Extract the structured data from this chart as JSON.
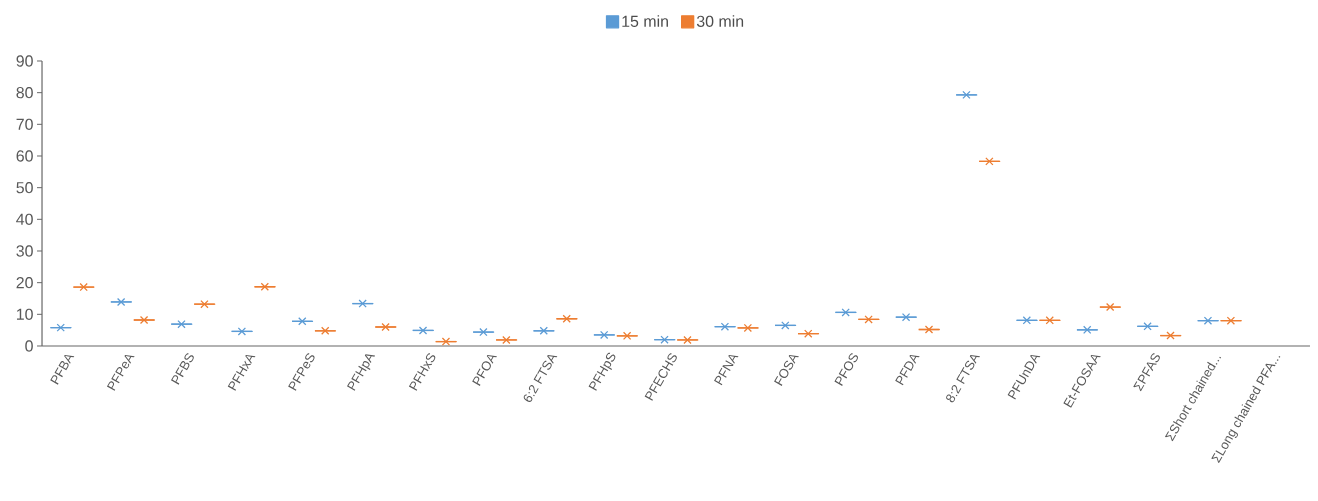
{
  "chart_data": {
    "type": "box",
    "categories": [
      "PFBA",
      "PFPeA",
      "PFBS",
      "PFHxA",
      "PFPeS",
      "PFHpA",
      "PFHxS",
      "PFOA",
      "6:2 FTSA",
      "PFHpS",
      "PFECHS",
      "PFNA",
      "FOSA",
      "PFOS",
      "PFDA",
      "8:2 FTSA",
      "PFUnDA",
      "Et-FOSAA",
      "ΣPFAS",
      "ΣShort chained...",
      "ΣLong chained PFA..."
    ],
    "series": [
      {
        "name": "15 min",
        "color": "#5b9bd5",
        "boxes": [
          {
            "low": 5.8,
            "q1": 5.8,
            "median": 5.8,
            "q3": 5.8,
            "high": 5.8,
            "mean": 5.8
          },
          {
            "low": 13.9,
            "q1": 13.9,
            "median": 13.9,
            "q3": 13.9,
            "high": 13.9,
            "mean": 13.9
          },
          {
            "low": 6.9,
            "q1": 6.9,
            "median": 6.9,
            "q3": 6.9,
            "high": 6.9,
            "mean": 6.9
          },
          {
            "low": 4.6,
            "q1": 4.6,
            "median": 4.6,
            "q3": 4.6,
            "high": 4.6,
            "mean": 4.6
          },
          {
            "low": 7.8,
            "q1": 7.8,
            "median": 7.8,
            "q3": 7.8,
            "high": 7.8,
            "mean": 7.8
          },
          {
            "low": 13.4,
            "q1": 13.4,
            "median": 13.4,
            "q3": 13.4,
            "high": 13.4,
            "mean": 13.4
          },
          {
            "low": 4.9,
            "q1": 4.9,
            "median": 4.9,
            "q3": 4.9,
            "high": 4.9,
            "mean": 4.9
          },
          {
            "low": 4.4,
            "q1": 4.4,
            "median": 4.4,
            "q3": 4.4,
            "high": 4.4,
            "mean": 4.4
          },
          {
            "low": 4.8,
            "q1": 4.8,
            "median": 4.8,
            "q3": 4.8,
            "high": 4.8,
            "mean": 4.8
          },
          {
            "low": 3.5,
            "q1": 3.5,
            "median": 3.5,
            "q3": 3.5,
            "high": 3.5,
            "mean": 3.5
          },
          {
            "low": 2.0,
            "q1": 2.0,
            "median": 2.0,
            "q3": 2.0,
            "high": 2.0,
            "mean": 2.0
          },
          {
            "low": 6.1,
            "q1": 6.1,
            "median": 6.1,
            "q3": 6.1,
            "high": 6.1,
            "mean": 6.1
          },
          {
            "low": 6.5,
            "q1": 6.5,
            "median": 6.5,
            "q3": 6.5,
            "high": 6.5,
            "mean": 6.5
          },
          {
            "low": 10.6,
            "q1": 10.6,
            "median": 10.6,
            "q3": 10.6,
            "high": 10.6,
            "mean": 10.6
          },
          {
            "low": 9.1,
            "q1": 9.1,
            "median": 9.1,
            "q3": 9.1,
            "high": 9.1,
            "mean": 9.1
          },
          {
            "low": 79.3,
            "q1": 79.3,
            "median": 79.3,
            "q3": 79.3,
            "high": 79.3,
            "mean": 79.3
          },
          {
            "low": 8.1,
            "q1": 8.1,
            "median": 8.1,
            "q3": 8.1,
            "high": 8.1,
            "mean": 8.1
          },
          {
            "low": 5.1,
            "q1": 5.1,
            "median": 5.1,
            "q3": 5.1,
            "high": 5.1,
            "mean": 5.1
          },
          {
            "low": 6.2,
            "q1": 6.2,
            "median": 6.2,
            "q3": 6.2,
            "high": 6.2,
            "mean": 6.2
          },
          {
            "low": 8.0,
            "q1": 8.0,
            "median": 8.0,
            "q3": 8.0,
            "high": 8.0,
            "mean": 8.0
          },
          null
        ]
      },
      {
        "name": "30 min",
        "color": "#ed7d31",
        "boxes": [
          {
            "low": 18.6,
            "q1": 18.6,
            "median": 18.6,
            "q3": 18.6,
            "high": 18.6,
            "mean": 18.6
          },
          {
            "low": 8.2,
            "q1": 8.2,
            "median": 8.2,
            "q3": 8.2,
            "high": 8.2,
            "mean": 8.2
          },
          {
            "low": 13.2,
            "q1": 13.2,
            "median": 13.2,
            "q3": 13.2,
            "high": 13.2,
            "mean": 13.2
          },
          {
            "low": 18.7,
            "q1": 18.7,
            "median": 18.7,
            "q3": 18.7,
            "high": 18.7,
            "mean": 18.7
          },
          {
            "low": 4.8,
            "q1": 4.8,
            "median": 4.8,
            "q3": 4.8,
            "high": 4.8,
            "mean": 4.8
          },
          {
            "low": 6.0,
            "q1": 6.0,
            "median": 6.0,
            "q3": 6.0,
            "high": 6.0,
            "mean": 6.0
          },
          {
            "low": 1.4,
            "q1": 1.4,
            "median": 1.4,
            "q3": 1.4,
            "high": 1.4,
            "mean": 1.4
          },
          {
            "low": 1.9,
            "q1": 1.9,
            "median": 1.9,
            "q3": 1.9,
            "high": 1.9,
            "mean": 1.9
          },
          {
            "low": 8.6,
            "q1": 8.6,
            "median": 8.6,
            "q3": 8.6,
            "high": 8.6,
            "mean": 8.6
          },
          {
            "low": 3.2,
            "q1": 3.2,
            "median": 3.2,
            "q3": 3.2,
            "high": 3.2,
            "mean": 3.2
          },
          {
            "low": 1.9,
            "q1": 1.9,
            "median": 1.9,
            "q3": 1.9,
            "high": 1.9,
            "mean": 1.9
          },
          {
            "low": 5.7,
            "q1": 5.7,
            "median": 5.7,
            "q3": 5.7,
            "high": 5.7,
            "mean": 5.7
          },
          {
            "low": 3.9,
            "q1": 3.9,
            "median": 3.9,
            "q3": 3.9,
            "high": 3.9,
            "mean": 3.9
          },
          {
            "low": 8.4,
            "q1": 8.4,
            "median": 8.4,
            "q3": 8.4,
            "high": 8.4,
            "mean": 8.4
          },
          {
            "low": 5.2,
            "q1": 5.2,
            "median": 5.2,
            "q3": 5.2,
            "high": 5.2,
            "mean": 5.2
          },
          {
            "low": 58.3,
            "q1": 58.3,
            "median": 58.3,
            "q3": 58.3,
            "high": 58.3,
            "mean": 58.3
          },
          {
            "low": 8.1,
            "q1": 8.1,
            "median": 8.1,
            "q3": 8.1,
            "high": 8.1,
            "mean": 8.1
          },
          {
            "low": 12.3,
            "q1": 12.3,
            "median": 12.3,
            "q3": 12.3,
            "high": 12.3,
            "mean": 12.3
          },
          {
            "low": 3.3,
            "q1": 3.3,
            "median": 3.3,
            "q3": 3.3,
            "high": 3.3,
            "mean": 3.3
          },
          {
            "low": 8.0,
            "q1": 8.0,
            "median": 8.0,
            "q3": 8.0,
            "high": 8.0,
            "mean": 8.0
          },
          null
        ]
      }
    ],
    "ylim": [
      0,
      90
    ],
    "yticks": [
      0,
      10,
      20,
      30,
      40,
      50,
      60,
      70,
      80,
      90
    ],
    "marker": "cross",
    "legend": "top",
    "grid": false
  }
}
